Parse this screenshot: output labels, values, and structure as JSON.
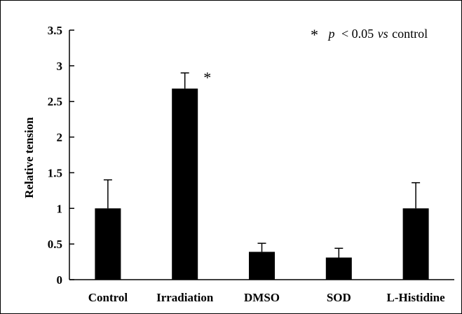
{
  "chart_data": {
    "type": "bar",
    "categories": [
      "Control",
      "Irradiation",
      "DMSO",
      "SOD",
      "L-Histidine"
    ],
    "values": [
      1.0,
      2.68,
      0.39,
      0.31,
      1.0
    ],
    "errors": [
      0.4,
      0.22,
      0.12,
      0.13,
      0.36
    ],
    "significant": [
      false,
      true,
      false,
      false,
      false
    ],
    "significance_mark": "*",
    "ylabel": "Relative tension",
    "ylim": [
      0,
      3.5
    ],
    "yticks": [
      "0",
      "0.5",
      "1",
      "1.5",
      "2",
      "2.5",
      "3",
      "3.5"
    ],
    "grid": false,
    "bar_color": "#000000",
    "legend": {
      "placement": "top-right",
      "symbol": "*",
      "p": "p",
      "operator": "< 0.05",
      "vs": "vs",
      "reference": "control"
    }
  }
}
